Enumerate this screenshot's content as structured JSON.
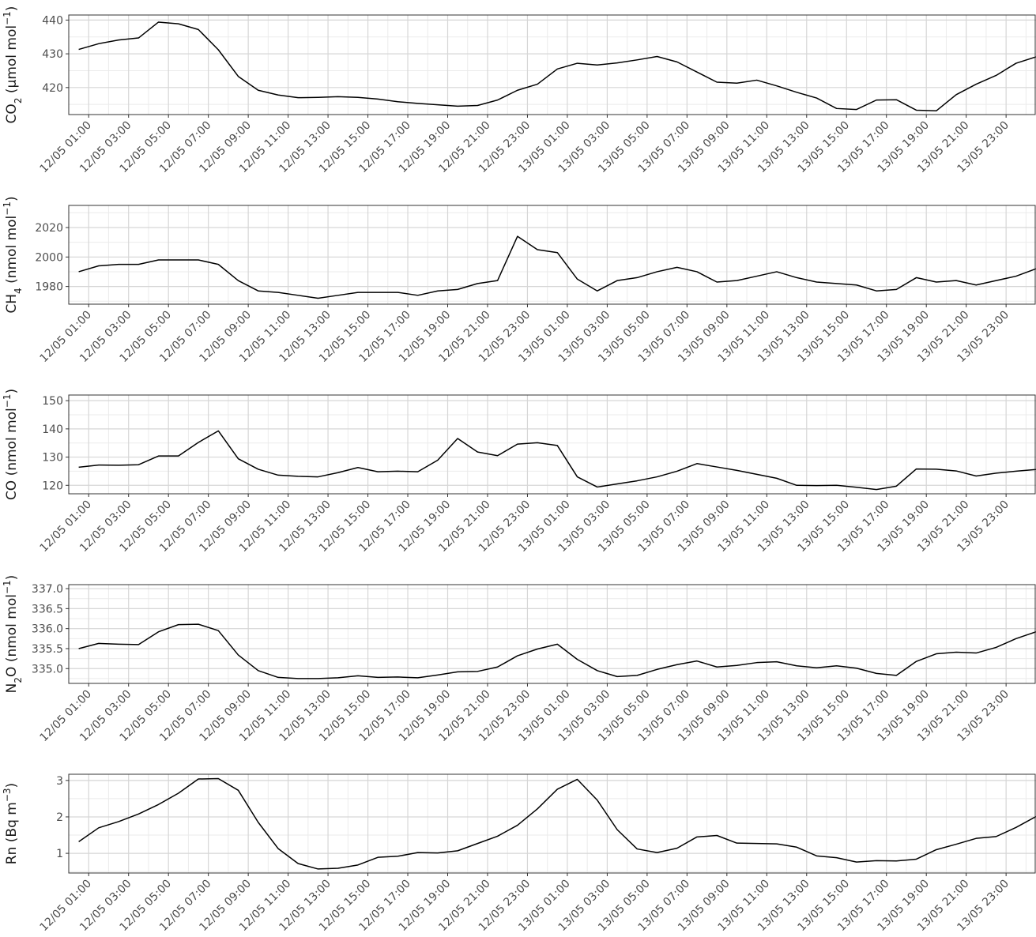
{
  "x_tick_labels": [
    "12/05 01:00",
    "12/05 03:00",
    "12/05 05:00",
    "12/05 07:00",
    "12/05 09:00",
    "12/05 11:00",
    "12/05 13:00",
    "12/05 15:00",
    "12/05 17:00",
    "12/05 19:00",
    "12/05 21:00",
    "12/05 23:00",
    "13/05 01:00",
    "13/05 03:00",
    "13/05 05:00",
    "13/05 07:00",
    "13/05 09:00",
    "13/05 11:00",
    "13/05 13:00",
    "13/05 15:00",
    "13/05 17:00",
    "13/05 19:00",
    "13/05 21:00",
    "13/05 23:00"
  ],
  "chart_data": [
    {
      "type": "line",
      "ylabel": {
        "base": "CO",
        "sub": "2",
        "unit": " (µmol mol",
        "sup": "−1",
        "close": ")"
      },
      "xlim": [
        "12/05 00:00",
        "14/05 00:30"
      ],
      "ylim": [
        412,
        441.5
      ],
      "y_ticks": [
        420,
        430,
        440
      ],
      "grid": true,
      "series": [
        {
          "values": [
            431.3,
            433.0,
            434.1,
            434.7,
            439.4,
            438.9,
            437.2,
            431.2,
            423.3,
            419.2,
            417.8,
            417.0,
            417.1,
            417.3,
            417.1,
            416.6,
            415.8,
            415.3,
            414.9,
            414.5,
            414.7,
            416.3,
            419.2,
            421.0,
            425.5,
            427.2,
            426.7,
            427.3,
            428.2,
            429.2,
            427.6,
            424.6,
            421.6,
            421.3,
            422.2,
            420.5,
            418.6,
            416.9,
            413.8,
            413.5,
            416.3,
            416.4,
            413.3,
            413.1,
            417.9,
            421.0,
            423.6,
            427.2,
            429.1
          ]
        }
      ]
    },
    {
      "type": "line",
      "ylabel": {
        "base": "CH",
        "sub": "4",
        "unit": " (nmol mol",
        "sup": "−1",
        "close": ")"
      },
      "xlim": [
        "12/05 00:00",
        "14/05 00:30"
      ],
      "ylim": [
        1968,
        2035
      ],
      "y_ticks": [
        1980,
        2000,
        2020
      ],
      "grid": true,
      "series": [
        {
          "values": [
            1990,
            1994,
            1995,
            1995,
            1998,
            1998,
            1998,
            1995,
            1984,
            1977,
            1976,
            1974,
            1972,
            1974,
            1976,
            1976,
            1976,
            1974,
            1977,
            1978,
            1982,
            1984,
            2014,
            2005,
            2003,
            1985,
            1977,
            1984,
            1986,
            1990,
            1993,
            1990,
            1983,
            1984,
            1987,
            1990,
            1986,
            1983,
            1982,
            1981,
            1977,
            1978,
            1986,
            1983,
            1984,
            1981,
            1984,
            1987,
            1992
          ]
        }
      ]
    },
    {
      "type": "line",
      "ylabel": {
        "base": "CO",
        "sub": "",
        "unit": " (nmol mol",
        "sup": "−1",
        "close": ")"
      },
      "xlim": [
        "12/05 00:00",
        "14/05 00:30"
      ],
      "ylim": [
        117,
        152
      ],
      "y_ticks": [
        120,
        130,
        140,
        150
      ],
      "grid": true,
      "series": [
        {
          "values": [
            126.4,
            127.2,
            127.1,
            127.3,
            130.4,
            130.4,
            135.2,
            139.3,
            129.4,
            125.7,
            123.6,
            123.2,
            123.0,
            124.5,
            126.3,
            124.8,
            125.0,
            124.8,
            128.9,
            136.6,
            131.8,
            130.5,
            134.6,
            135.1,
            134.1,
            123.0,
            119.4,
            120.5,
            121.6,
            123.0,
            125.0,
            127.7,
            126.5,
            125.3,
            123.9,
            122.5,
            120.0,
            119.9,
            120.0,
            119.3,
            118.5,
            119.7,
            125.8,
            125.7,
            125.1,
            123.3,
            124.3,
            125.0,
            125.6
          ]
        }
      ]
    },
    {
      "type": "line",
      "ylabel": {
        "base": "N",
        "sub": "2",
        "unit": "O (nmol mol",
        "sup": "−1",
        "close": ")"
      },
      "xlim": [
        "12/05 00:00",
        "14/05 00:30"
      ],
      "ylim": [
        334.63,
        337.1
      ],
      "y_ticks": [
        335.0,
        335.5,
        336.0,
        336.5,
        337.0
      ],
      "y_tick_labels": [
        "335.0",
        "335.5",
        "336.0",
        "336.5",
        "337.0"
      ],
      "grid": true,
      "series": [
        {
          "values": [
            335.5,
            335.63,
            335.61,
            335.6,
            335.92,
            336.1,
            336.11,
            335.95,
            335.34,
            334.95,
            334.78,
            334.75,
            334.75,
            334.77,
            334.82,
            334.78,
            334.79,
            334.77,
            334.84,
            334.92,
            334.93,
            335.04,
            335.32,
            335.49,
            335.61,
            335.23,
            334.95,
            334.8,
            334.83,
            334.98,
            335.1,
            335.19,
            335.04,
            335.08,
            335.15,
            335.17,
            335.07,
            335.02,
            335.07,
            335.01,
            334.88,
            334.83,
            335.18,
            335.37,
            335.41,
            335.39,
            335.53,
            335.75,
            335.92
          ]
        }
      ]
    },
    {
      "type": "line",
      "ylabel": {
        "base": "Rn (Bq m",
        "sub": "",
        "unit": "",
        "sup": "−3",
        "close": ")"
      },
      "xlim": [
        "12/05 00:00",
        "14/05 00:30"
      ],
      "ylim": [
        0.46,
        3.17
      ],
      "y_ticks": [
        1,
        2,
        3
      ],
      "grid": true,
      "series": [
        {
          "values": [
            1.32,
            1.7,
            1.87,
            2.08,
            2.34,
            2.65,
            3.04,
            3.05,
            2.73,
            1.85,
            1.13,
            0.72,
            0.57,
            0.59,
            0.68,
            0.89,
            0.92,
            1.02,
            1.01,
            1.07,
            1.27,
            1.47,
            1.77,
            2.22,
            2.76,
            3.03,
            2.46,
            1.65,
            1.12,
            1.02,
            1.14,
            1.45,
            1.49,
            1.28,
            1.27,
            1.26,
            1.17,
            0.93,
            0.88,
            0.76,
            0.8,
            0.79,
            0.84,
            1.1,
            1.25,
            1.41,
            1.46,
            1.71,
            2.01
          ]
        }
      ]
    }
  ]
}
